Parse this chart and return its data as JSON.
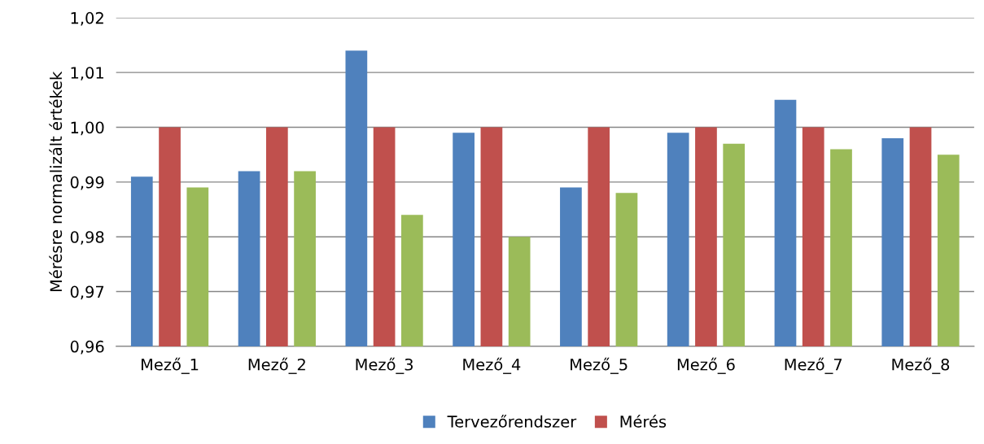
{
  "chart_data": {
    "type": "bar",
    "ylabel": "Mérésre normalizált értékek",
    "categories": [
      "Mező_1",
      "Mező_2",
      "Mező_3",
      "Mező_4",
      "Mező_5",
      "Mező_6",
      "Mező_7",
      "Mező_8"
    ],
    "series": [
      {
        "name": "Tervezőrendszer",
        "color": "#4f81bd",
        "values": [
          0.991,
          0.992,
          1.014,
          0.999,
          0.989,
          0.999,
          1.005,
          0.998
        ]
      },
      {
        "name": "Mérés",
        "color": "#c0504d",
        "values": [
          1.0,
          1.0,
          1.0,
          1.0,
          1.0,
          1.0,
          1.0,
          1.0
        ]
      },
      {
        "color": "#9bbb59",
        "values": [
          0.989,
          0.992,
          0.984,
          0.98,
          0.988,
          0.997,
          0.996,
          0.995
        ]
      }
    ],
    "ylim": [
      0.96,
      1.02
    ],
    "yticks": [
      {
        "value": 0.96,
        "label": "0,96"
      },
      {
        "value": 0.97,
        "label": "0,97"
      },
      {
        "value": 0.98,
        "label": "0,98"
      },
      {
        "value": 0.99,
        "label": "0,99"
      },
      {
        "value": 1.0,
        "label": "1,00"
      },
      {
        "value": 1.01,
        "label": "1,01"
      },
      {
        "value": 1.02,
        "label": "1,02"
      }
    ],
    "grid": "y",
    "legend": "bottom"
  }
}
